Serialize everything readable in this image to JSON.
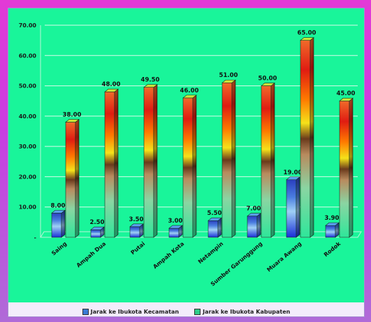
{
  "chart_data": {
    "type": "bar",
    "title": "",
    "xlabel": "",
    "ylabel": "",
    "categories": [
      "Saing",
      "Ampah Dua",
      "Putai",
      "Ampah Kota",
      "Netampin",
      "Sumber Garunggung",
      "Muara Awang",
      "Rodok"
    ],
    "series": [
      {
        "name": "Jarak ke Ibukota Kecamatan",
        "values": [
          8.0,
          2.5,
          3.5,
          3.0,
          5.5,
          7.0,
          19.0,
          3.9
        ]
      },
      {
        "name": "Jarak ke Ibukota Kabupaten",
        "values": [
          38.0,
          48.0,
          49.5,
          46.0,
          51.0,
          50.0,
          65.0,
          45.0
        ]
      }
    ],
    "value_labels": [
      [
        "8.00",
        "2.50",
        "3.50",
        "3.00",
        "5.50",
        "7.00",
        "19.00",
        "3.90"
      ],
      [
        "38.00",
        "48.00",
        "49.50",
        "46.00",
        "51.00",
        "50.00",
        "65.00",
        "45.00"
      ]
    ],
    "ylim": [
      0,
      70
    ],
    "yticks": [
      0,
      10,
      20,
      30,
      40,
      50,
      60,
      70
    ],
    "ytick_labels": [
      "-",
      "10.00",
      "20.00",
      "30.00",
      "40.00",
      "50.00",
      "60.00",
      "70.00"
    ],
    "grid": true,
    "legend_position": "bottom",
    "colors": {
      "page_border": "#e23ad6",
      "plot_background": "#19f59a",
      "series1_swatch": "#3a7bd5",
      "series2_swatch": "#2ecb8a"
    }
  }
}
